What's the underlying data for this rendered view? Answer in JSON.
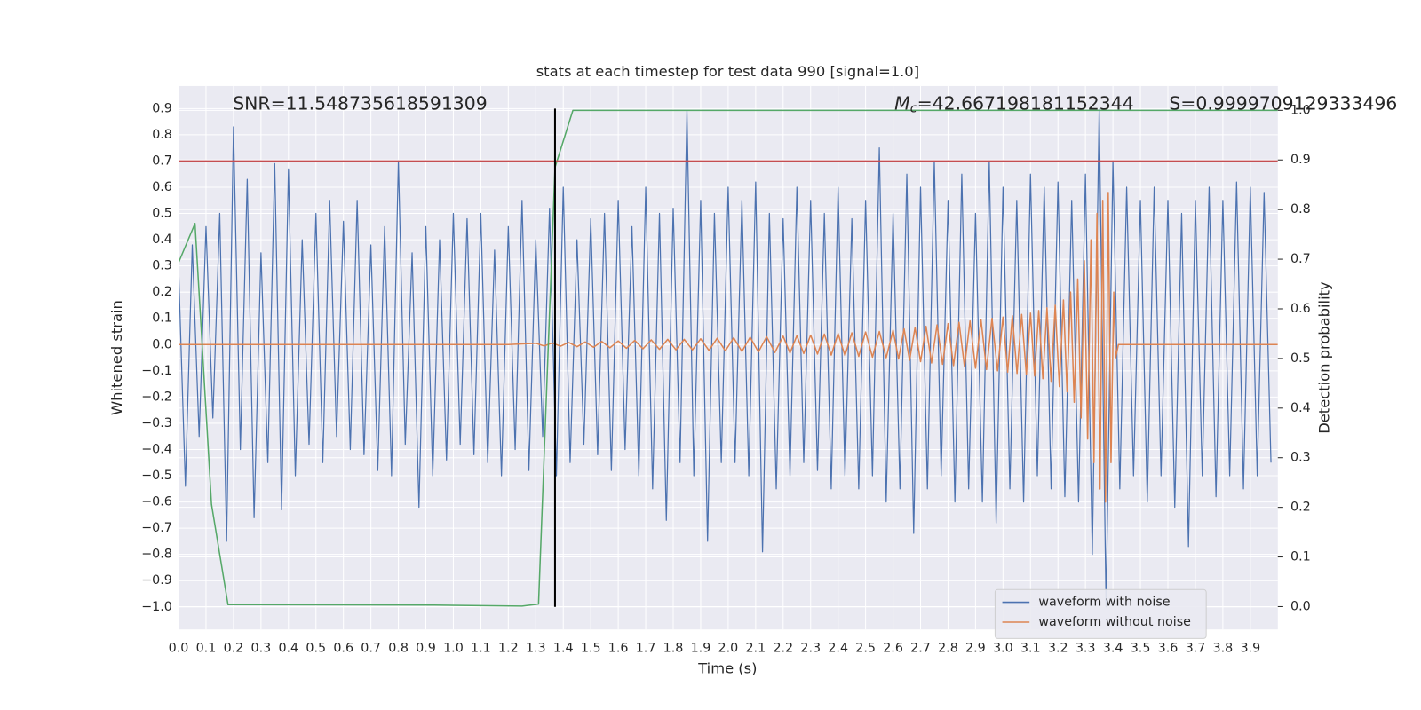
{
  "chart_data": {
    "type": "line",
    "title": "stats at each timestep for test data 990 [signal=1.0]",
    "xlabel": "Time (s)",
    "ylabel": "Whitened strain",
    "y2label": "Detection probability",
    "annotations": [
      {
        "text": "SNR=11.548735618591309"
      },
      {
        "symbol": "M",
        "subscript": "c",
        "text": "=42.667198181152344"
      },
      {
        "text": "S=0.9999709129333496"
      }
    ],
    "xlim": [
      0,
      4.0
    ],
    "ylim": [
      -1.086,
      0.986
    ],
    "y2lim": [
      -0.046,
      1.049
    ],
    "xticks": [
      {
        "value": 0,
        "label": "0.0"
      },
      0.1,
      0.2,
      0.3,
      0.4,
      0.5,
      0.6,
      0.7,
      0.8,
      0.9,
      {
        "value": 1,
        "label": "1.0"
      },
      1.1,
      1.2,
      1.3,
      1.4,
      1.5,
      1.6,
      1.7,
      1.8,
      1.9,
      {
        "value": 2,
        "label": "2.0"
      },
      2.1,
      2.2,
      2.3,
      2.4,
      2.5,
      2.6,
      2.7,
      2.8,
      2.9,
      {
        "value": 3,
        "label": "3.0"
      },
      3.1,
      3.2,
      3.3,
      3.4,
      3.5,
      3.6,
      3.7,
      3.8,
      3.9
    ],
    "yticks": [
      {
        "value": -1.0,
        "label": "−1.0"
      },
      {
        "value": -0.9,
        "label": "−0.9"
      },
      {
        "value": -0.8,
        "label": "−0.8"
      },
      {
        "value": -0.7,
        "label": "−0.7"
      },
      {
        "value": -0.6,
        "label": "−0.6"
      },
      {
        "value": -0.5,
        "label": "−0.5"
      },
      {
        "value": -0.4,
        "label": "−0.4"
      },
      {
        "value": -0.3,
        "label": "−0.3"
      },
      {
        "value": -0.2,
        "label": "−0.2"
      },
      {
        "value": -0.1,
        "label": "−0.1"
      },
      {
        "value": 0,
        "label": "0.0"
      },
      0.1,
      0.2,
      0.3,
      0.4,
      0.5,
      0.6,
      0.7,
      0.8,
      0.9
    ],
    "y2ticks": [
      {
        "value": 0,
        "label": "0.0"
      },
      0.1,
      0.2,
      0.3,
      0.4,
      0.5,
      0.6,
      0.7,
      0.8,
      0.9,
      {
        "value": 1,
        "label": "1.0"
      }
    ],
    "grid": true,
    "legend": "lower right",
    "hlines": [
      {
        "y": 0.7,
        "color": "#c44e52"
      }
    ],
    "vlines": [
      {
        "x": 1.37,
        "ymin": -1.0,
        "ymax": 0.9,
        "color": "#000000"
      }
    ],
    "series": [
      {
        "name": "waveform with noise",
        "color": "#4c72b0",
        "x": [
          0,
          0.025,
          0.05,
          0.075,
          0.1,
          0.125,
          0.15,
          0.175,
          0.2,
          0.225,
          0.25,
          0.275,
          0.3,
          0.325,
          0.35,
          0.375,
          0.4,
          0.425,
          0.45,
          0.475,
          0.5,
          0.525,
          0.55,
          0.575,
          0.6,
          0.625,
          0.65,
          0.675,
          0.7,
          0.725,
          0.75,
          0.775,
          0.8,
          0.825,
          0.85,
          0.875,
          0.9,
          0.925,
          0.95,
          0.975,
          1.0,
          1.025,
          1.05,
          1.075,
          1.1,
          1.125,
          1.15,
          1.175,
          1.2,
          1.225,
          1.25,
          1.275,
          1.3,
          1.325,
          1.35,
          1.375,
          1.4,
          1.425,
          1.45,
          1.475,
          1.5,
          1.525,
          1.55,
          1.575,
          1.6,
          1.625,
          1.65,
          1.675,
          1.7,
          1.725,
          1.75,
          1.775,
          1.8,
          1.825,
          1.85,
          1.875,
          1.9,
          1.925,
          1.95,
          1.975,
          2.0,
          2.025,
          2.05,
          2.075,
          2.1,
          2.125,
          2.15,
          2.175,
          2.2,
          2.225,
          2.25,
          2.275,
          2.3,
          2.325,
          2.35,
          2.375,
          2.4,
          2.425,
          2.45,
          2.475,
          2.5,
          2.525,
          2.55,
          2.575,
          2.6,
          2.625,
          2.65,
          2.675,
          2.7,
          2.725,
          2.75,
          2.775,
          2.8,
          2.825,
          2.85,
          2.875,
          2.9,
          2.925,
          2.95,
          2.975,
          3.0,
          3.025,
          3.05,
          3.075,
          3.1,
          3.125,
          3.15,
          3.175,
          3.2,
          3.225,
          3.25,
          3.275,
          3.3,
          3.325,
          3.35,
          3.375,
          3.4,
          3.425,
          3.45,
          3.475,
          3.5,
          3.525,
          3.55,
          3.575,
          3.6,
          3.625,
          3.65,
          3.675,
          3.7,
          3.725,
          3.75,
          3.775,
          3.8,
          3.825,
          3.85,
          3.875,
          3.9,
          3.925,
          3.95,
          3.975
        ],
        "values": [
          0.3,
          -0.54,
          0.38,
          -0.35,
          0.45,
          -0.28,
          0.5,
          -0.75,
          0.83,
          -0.4,
          0.63,
          -0.66,
          0.35,
          -0.45,
          0.69,
          -0.63,
          0.67,
          -0.5,
          0.4,
          -0.38,
          0.5,
          -0.45,
          0.55,
          -0.35,
          0.47,
          -0.4,
          0.55,
          -0.42,
          0.38,
          -0.48,
          0.45,
          -0.5,
          0.7,
          -0.38,
          0.35,
          -0.62,
          0.45,
          -0.5,
          0.4,
          -0.44,
          0.5,
          -0.38,
          0.48,
          -0.42,
          0.5,
          -0.45,
          0.36,
          -0.5,
          0.45,
          -0.4,
          0.55,
          -0.48,
          0.4,
          -0.35,
          0.52,
          -0.5,
          0.6,
          -0.45,
          0.4,
          -0.38,
          0.48,
          -0.42,
          0.5,
          -0.48,
          0.55,
          -0.4,
          0.45,
          -0.5,
          0.6,
          -0.55,
          0.5,
          -0.67,
          0.52,
          -0.45,
          0.89,
          -0.5,
          0.55,
          -0.75,
          0.5,
          -0.45,
          0.6,
          -0.45,
          0.55,
          -0.5,
          0.62,
          -0.79,
          0.5,
          -0.55,
          0.48,
          -0.5,
          0.6,
          -0.45,
          0.55,
          -0.48,
          0.5,
          -0.55,
          0.6,
          -0.5,
          0.48,
          -0.55,
          0.55,
          -0.5,
          0.75,
          -0.6,
          0.5,
          -0.55,
          0.65,
          -0.72,
          0.6,
          -0.55,
          0.7,
          -0.5,
          0.55,
          -0.6,
          0.65,
          -0.55,
          0.5,
          -0.6,
          0.7,
          -0.68,
          0.6,
          -0.55,
          0.55,
          -0.6,
          0.65,
          -0.5,
          0.6,
          -0.55,
          0.62,
          -0.58,
          0.55,
          -0.6,
          0.65,
          -0.8,
          0.9,
          -1.0,
          0.7,
          -0.55,
          0.6,
          -0.5,
          0.55,
          -0.6,
          0.6,
          -0.5,
          0.55,
          -0.62,
          0.5,
          -0.77,
          0.55,
          -0.5,
          0.6,
          -0.58,
          0.55,
          -0.5,
          0.62,
          -0.55,
          0.6,
          -0.5,
          0.58,
          -0.45
        ]
      },
      {
        "name": "waveform without noise",
        "color": "#dd8452",
        "x": [
          0,
          1.2,
          1.3,
          1.33,
          1.36,
          1.39,
          1.42,
          1.45,
          1.48,
          1.51,
          1.54,
          1.57,
          1.6,
          1.63,
          1.66,
          1.69,
          1.72,
          1.75,
          1.78,
          1.81,
          1.84,
          1.87,
          1.9,
          1.93,
          1.96,
          1.99,
          2.02,
          2.05,
          2.08,
          2.11,
          2.14,
          2.17,
          2.2,
          2.225,
          2.25,
          2.275,
          2.3,
          2.325,
          2.35,
          2.375,
          2.4,
          2.425,
          2.45,
          2.475,
          2.5,
          2.525,
          2.55,
          2.575,
          2.6,
          2.62,
          2.64,
          2.66,
          2.68,
          2.7,
          2.72,
          2.74,
          2.76,
          2.78,
          2.8,
          2.82,
          2.84,
          2.86,
          2.88,
          2.9,
          2.92,
          2.94,
          2.96,
          2.98,
          3.0,
          3.017,
          3.034,
          3.051,
          3.068,
          3.085,
          3.1,
          3.115,
          3.13,
          3.145,
          3.16,
          3.175,
          3.19,
          3.205,
          3.22,
          3.233,
          3.246,
          3.259,
          3.272,
          3.284,
          3.296,
          3.308,
          3.32,
          3.331,
          3.342,
          3.353,
          3.363,
          3.373,
          3.383,
          3.393,
          3.403,
          3.41,
          3.42,
          4.0
        ],
        "values": [
          0,
          0,
          0.005,
          -0.005,
          0.006,
          -0.006,
          0.008,
          -0.008,
          0.01,
          -0.01,
          0.012,
          -0.012,
          0.014,
          -0.014,
          0.016,
          -0.016,
          0.018,
          -0.018,
          0.02,
          -0.02,
          0.02,
          -0.02,
          0.022,
          -0.022,
          0.024,
          -0.024,
          0.026,
          -0.026,
          0.028,
          -0.028,
          0.03,
          -0.03,
          0.032,
          -0.032,
          0.034,
          -0.034,
          0.036,
          -0.036,
          0.04,
          -0.04,
          0.042,
          -0.042,
          0.045,
          -0.045,
          0.048,
          -0.048,
          0.05,
          -0.05,
          0.055,
          -0.055,
          0.06,
          -0.06,
          0.065,
          -0.065,
          0.07,
          -0.07,
          0.075,
          -0.075,
          0.08,
          -0.08,
          0.085,
          -0.085,
          0.09,
          -0.09,
          0.095,
          -0.095,
          0.1,
          -0.1,
          0.105,
          -0.105,
          0.11,
          -0.11,
          0.115,
          -0.115,
          0.12,
          -0.12,
          0.13,
          -0.13,
          0.14,
          -0.14,
          0.15,
          -0.16,
          0.17,
          -0.18,
          0.2,
          -0.22,
          0.25,
          -0.28,
          0.32,
          -0.36,
          0.4,
          -0.45,
          0.5,
          -0.55,
          0.55,
          -0.6,
          0.58,
          -0.45,
          0.2,
          -0.05,
          0,
          0
        ]
      },
      {
        "color": "#55a868",
        "axis": "y2",
        "x": [
          0,
          0.06,
          0.12,
          0.18,
          0.93,
          1.25,
          1.31,
          1.37,
          1.435,
          4.0
        ],
        "values": [
          0.693,
          0.772,
          0.206,
          0.004,
          0.003,
          0.001,
          0.005,
          0.885,
          1.0,
          1.0
        ]
      }
    ]
  }
}
